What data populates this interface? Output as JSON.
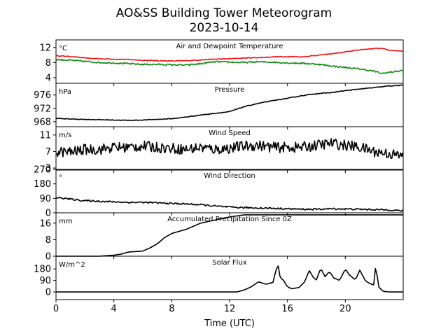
{
  "title_line1": "AO&SS Building Tower Meteorogram",
  "title_line2": "2023-10-14",
  "chart_data": {
    "type": "line",
    "xlabel": "Time (UTC)",
    "xlim": [
      0,
      24
    ],
    "xticks": [
      0,
      4,
      8,
      12,
      16,
      20
    ],
    "colors": {
      "axis": "#000000",
      "temperature": "#ee1111",
      "dewpoint": "#118811",
      "default": "#000000"
    },
    "panels": [
      {
        "title": "Air and Dewpoint Temperature",
        "unit": "°C",
        "ylim": [
          2.5,
          14
        ],
        "yticks": [
          4,
          8,
          12
        ],
        "series": [
          {
            "color": "#ee1111",
            "noise": 0.1,
            "x": [
              0,
              1,
              2,
              3,
              4,
              5,
              6,
              7,
              8,
              9,
              10,
              11,
              12,
              13,
              14,
              15,
              16,
              17,
              18,
              19,
              20,
              21,
              22,
              22.5,
              23,
              24
            ],
            "y": [
              9.8,
              9.6,
              9.2,
              9.0,
              8.9,
              8.8,
              8.6,
              8.5,
              8.4,
              8.5,
              8.7,
              8.9,
              9.0,
              9.2,
              9.3,
              9.5,
              9.6,
              9.5,
              9.9,
              10.3,
              10.8,
              11.4,
              11.7,
              11.8,
              11.3,
              11.0
            ]
          },
          {
            "color": "#118811",
            "noise": 0.2,
            "x": [
              0,
              1,
              2,
              3,
              4,
              5,
              6,
              7,
              8,
              9,
              10,
              11,
              12,
              13,
              14,
              15,
              16,
              17,
              18,
              19,
              20,
              21,
              22,
              22.5,
              23,
              24
            ],
            "y": [
              8.8,
              8.6,
              8.3,
              8.0,
              7.9,
              7.7,
              7.5,
              7.5,
              7.4,
              7.3,
              7.7,
              8.2,
              8.1,
              8.0,
              8.2,
              8.1,
              7.9,
              7.8,
              7.6,
              7.1,
              6.7,
              6.3,
              5.7,
              5.1,
              5.4,
              5.9
            ]
          }
        ]
      },
      {
        "title": "Pressure",
        "unit": "hPa",
        "ylim": [
          966.5,
          979.5
        ],
        "yticks": [
          968,
          972,
          976
        ],
        "series": [
          {
            "color": "#000000",
            "noise": 0.1,
            "x": [
              0,
              1,
              2,
              3,
              4,
              5,
              6,
              7,
              8,
              9,
              10,
              11,
              12,
              13,
              14,
              15,
              16,
              17,
              18,
              19,
              20,
              21,
              22,
              23,
              24
            ],
            "y": [
              969.0,
              968.8,
              968.7,
              968.6,
              968.5,
              968.4,
              968.5,
              968.7,
              968.9,
              969.4,
              970.0,
              970.5,
              971.0,
              972.5,
              973.5,
              974.3,
              975.0,
              975.8,
              976.4,
              976.7,
              977.3,
              977.8,
              978.2,
              978.7,
              978.9
            ]
          }
        ]
      },
      {
        "title": "Wind Speed",
        "unit": "m/s",
        "ylim": [
          2.5,
          13
        ],
        "yticks": [
          3,
          7,
          11
        ],
        "series": [
          {
            "color": "#000000",
            "noise": 1.3,
            "x": [
              0,
              1,
              2,
              3,
              4,
              5,
              6,
              7,
              8,
              9,
              10,
              11,
              12,
              13,
              14,
              15,
              16,
              17,
              18,
              19,
              20,
              21,
              22,
              23,
              24
            ],
            "y": [
              7.0,
              6.8,
              7.5,
              7.5,
              8.0,
              8.0,
              8.3,
              8.0,
              7.8,
              7.5,
              8.0,
              7.5,
              7.8,
              8.3,
              8.5,
              8.0,
              8.0,
              8.0,
              8.5,
              9.0,
              8.5,
              8.0,
              7.0,
              6.5,
              5.8
            ]
          }
        ]
      },
      {
        "title": "Wind Direction",
        "unit": "°",
        "ylim": [
          0,
          270
        ],
        "yticks": [
          0,
          90,
          180,
          270
        ],
        "series": [
          {
            "color": "#000000",
            "noise": 5,
            "x": [
              0,
              1,
              2,
              3,
              4,
              5,
              6,
              7,
              8,
              9,
              10,
              11,
              12,
              13,
              14,
              15,
              16,
              17,
              18,
              19,
              20,
              21,
              22,
              23,
              24
            ],
            "y": [
              95,
              85,
              75,
              72,
              68,
              65,
              65,
              62,
              58,
              55,
              50,
              42,
              35,
              32,
              30,
              28,
              25,
              22,
              22,
              25,
              24,
              22,
              20,
              18,
              12
            ]
          }
        ]
      },
      {
        "title": "Accumulated Precipitation Since 0Z",
        "unit": "mm",
        "ylim": [
          0,
          21
        ],
        "yticks": [
          0,
          8,
          16
        ],
        "series": [
          {
            "color": "#000000",
            "noise": 0,
            "x": [
              0,
              3,
              4,
              4.5,
              5,
              6,
              6.5,
              7,
              7.5,
              8,
              9,
              10,
              11,
              12,
              13,
              13.5,
              14,
              24
            ],
            "y": [
              0,
              0,
              0.5,
              1.0,
              2.0,
              2.5,
              4.0,
              6.0,
              9.0,
              11.0,
              13.0,
              16.0,
              17.5,
              19.0,
              20.0,
              20.0,
              20.0,
              20.0
            ]
          }
        ]
      },
      {
        "title": "Solar Flux",
        "unit": "W/m^2",
        "ylim": [
          -60,
          280
        ],
        "yticks": [
          0,
          90,
          180
        ],
        "series": [
          {
            "color": "#000000",
            "noise": 0,
            "x": [
              0,
              12.5,
              13,
              13.5,
              14,
              14.5,
              15,
              15.2,
              15.35,
              15.5,
              15.7,
              16,
              16.3,
              16.8,
              17.2,
              17.5,
              17.8,
              18,
              18.3,
              18.6,
              18.9,
              19.2,
              19.6,
              20,
              20.3,
              20.7,
              21,
              21.4,
              21.8,
              22,
              22.1,
              22.3,
              22.6,
              23,
              24
            ],
            "y": [
              0,
              0,
              15,
              40,
              80,
              60,
              75,
              170,
              210,
              110,
              95,
              40,
              25,
              35,
              80,
              170,
              110,
              95,
              185,
              120,
              160,
              110,
              90,
              180,
              130,
              95,
              170,
              85,
              60,
              55,
              215,
              40,
              5,
              0,
              0
            ]
          }
        ]
      }
    ]
  }
}
